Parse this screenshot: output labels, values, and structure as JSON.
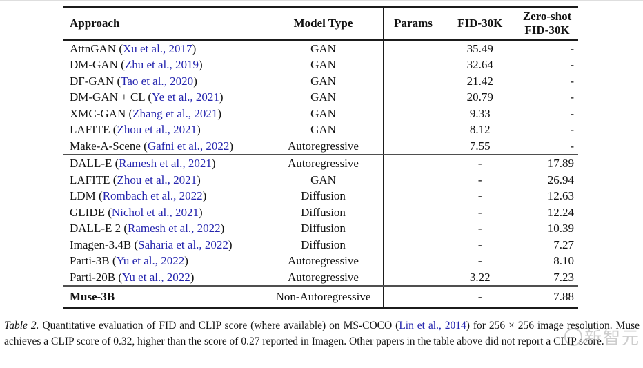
{
  "colors": {
    "citation_blue": "#2424ae",
    "text_black": "#121212",
    "rule_dark": "#1b1b1b",
    "rule_gray": "#4f4f4f",
    "watermark_gray": "#7e7e7e"
  },
  "table": {
    "columns": [
      {
        "label": "Approach",
        "align": "left"
      },
      {
        "label": "Model Type",
        "align": "center"
      },
      {
        "label": "Params",
        "align": "center"
      },
      {
        "label": "FID-30K",
        "align": "center"
      },
      {
        "label": "Zero-shot FID-30K",
        "align": "right",
        "lines": [
          "Zero-shot",
          "FID-30K"
        ]
      }
    ],
    "sections": [
      {
        "rows": [
          {
            "approach": "AttnGAN",
            "citation": "Xu et al., 2017",
            "model_type": "GAN",
            "params": "",
            "fid_30k": "35.49",
            "zero_shot_fid_30k": "-"
          },
          {
            "approach": "DM-GAN",
            "citation": "Zhu et al., 2019",
            "model_type": "GAN",
            "params": "",
            "fid_30k": "32.64",
            "zero_shot_fid_30k": "-"
          },
          {
            "approach": "DF-GAN",
            "citation": "Tao et al., 2020",
            "model_type": "GAN",
            "params": "",
            "fid_30k": "21.42",
            "zero_shot_fid_30k": "-"
          },
          {
            "approach": "DM-GAN + CL",
            "citation": "Ye et al., 2021",
            "model_type": "GAN",
            "params": "",
            "fid_30k": "20.79",
            "zero_shot_fid_30k": "-"
          },
          {
            "approach": "XMC-GAN",
            "citation": "Zhang et al., 2021",
            "model_type": "GAN",
            "params": "",
            "fid_30k": "9.33",
            "zero_shot_fid_30k": "-"
          },
          {
            "approach": "LAFITE",
            "citation": "Zhou et al., 2021",
            "model_type": "GAN",
            "params": "",
            "fid_30k": "8.12",
            "zero_shot_fid_30k": "-"
          },
          {
            "approach": "Make-A-Scene",
            "citation": "Gafni et al., 2022",
            "model_type": "Autoregressive",
            "params": "",
            "fid_30k": "7.55",
            "zero_shot_fid_30k": "-"
          }
        ]
      },
      {
        "rows": [
          {
            "approach": "DALL-E",
            "citation": "Ramesh et al., 2021",
            "model_type": "Autoregressive",
            "params": "",
            "fid_30k": "-",
            "zero_shot_fid_30k": "17.89"
          },
          {
            "approach": "LAFITE",
            "citation": "Zhou et al., 2021",
            "model_type": "GAN",
            "params": "",
            "fid_30k": "-",
            "zero_shot_fid_30k": "26.94"
          },
          {
            "approach": "LDM",
            "citation": "Rombach et al., 2022",
            "model_type": "Diffusion",
            "params": "",
            "fid_30k": "-",
            "zero_shot_fid_30k": "12.63"
          },
          {
            "approach": "GLIDE",
            "citation": "Nichol et al., 2021",
            "model_type": "Diffusion",
            "params": "",
            "fid_30k": "-",
            "zero_shot_fid_30k": "12.24"
          },
          {
            "approach": "DALL-E 2",
            "citation": "Ramesh et al., 2022",
            "model_type": "Diffusion",
            "params": "",
            "fid_30k": "-",
            "zero_shot_fid_30k": "10.39"
          },
          {
            "approach": "Imagen-3.4B",
            "citation": "Saharia et al., 2022",
            "model_type": "Diffusion",
            "params": "",
            "fid_30k": "-",
            "zero_shot_fid_30k": "7.27"
          },
          {
            "approach": "Parti-3B",
            "citation": "Yu et al., 2022",
            "model_type": "Autoregressive",
            "params": "",
            "fid_30k": "-",
            "zero_shot_fid_30k": "8.10"
          },
          {
            "approach": "Parti-20B",
            "citation": "Yu et al., 2022",
            "model_type": "Autoregressive",
            "params": "",
            "fid_30k": "3.22",
            "zero_shot_fid_30k": "7.23"
          }
        ]
      },
      {
        "rows": [
          {
            "approach": "Muse-3B",
            "citation": null,
            "model_type": "Non-Autoregressive",
            "params": "",
            "fid_30k": "-",
            "zero_shot_fid_30k": "7.88",
            "bold": true
          }
        ]
      }
    ]
  },
  "caption": {
    "label": "Table 2.",
    "before_citation": "Quantitative evaluation of FID and CLIP score (where available) on MS-COCO (",
    "citation": "Lin et al., 2014",
    "after_citation": ") for 256 × 256 image resolution. Muse achieves a CLIP score of 0.32, higher than the score of 0.27 reported in Imagen. Other papers in the table above did not report a CLIP score."
  },
  "watermark": {
    "text": "新智元"
  }
}
